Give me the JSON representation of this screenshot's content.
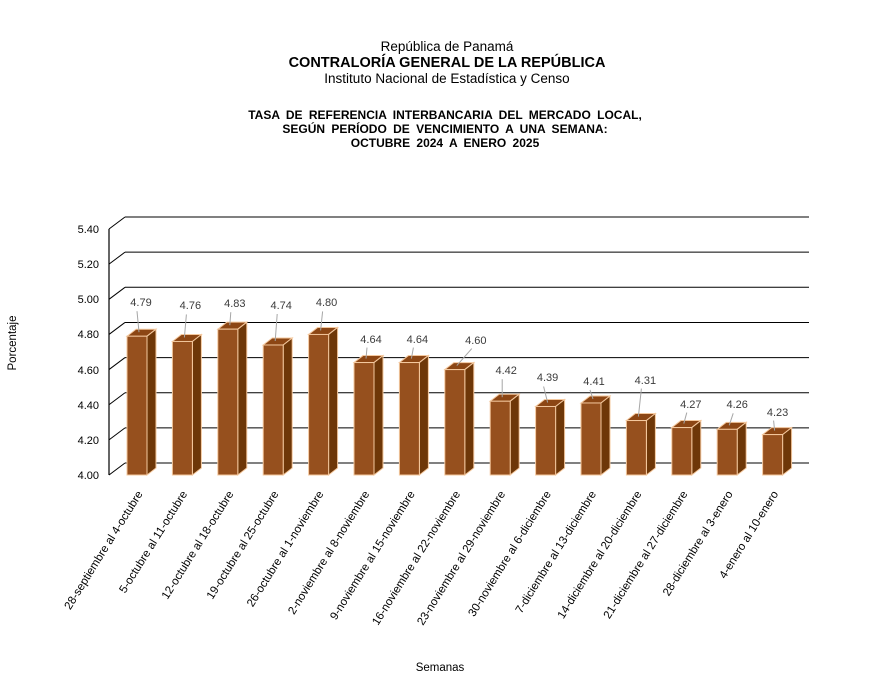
{
  "header": {
    "line1": "República de Panamá",
    "line2": "CONTRALORÍA GENERAL DE LA REPÚBLICA",
    "line3": "Instituto Nacional de Estadística y Censo"
  },
  "title": {
    "line1": "TASA DE REFERENCIA INTERBANCARIA DEL MERCADO LOCAL,",
    "line2": "SEGÚN PERÍODO DE VENCIMIENTO A UNA SEMANA:",
    "line3": "OCTUBRE 2024 A ENERO 2025"
  },
  "chart_data": {
    "type": "bar",
    "style": "3d-column",
    "title": "TASA DE REFERENCIA INTERBANCARIA DEL MERCADO LOCAL, SEGÚN PERÍODO DE VENCIMIENTO A UNA SEMANA: OCTUBRE 2024 A ENERO 2025",
    "xlabel": "Semanas",
    "ylabel": "Porcentaje",
    "ylim": [
      4.0,
      5.4
    ],
    "ytick_step": 0.2,
    "yticks": [
      "4.00",
      "4.20",
      "4.40",
      "4.60",
      "4.80",
      "5.00",
      "5.20",
      "5.40"
    ],
    "grid": true,
    "legend": false,
    "categories": [
      "28-septiembre al 4-octubre",
      "5-octubre al 11-octubre",
      "12-octubre al 18-octubre",
      "19-octubre al 25-octubre",
      "26-octubre al 1-noviembre",
      "2-noviembre al 8-noviembre",
      "9-noviembre al 15-noviembre",
      "16-noviembre al 22-noviembre",
      "23-noviembre al 29-noviembre",
      "30-noviembre al 6-diciembre",
      "7-diciembre al 13-diciembre",
      "14-diciembre al 20-diciembre",
      "21-diciembre al 27-diciembre",
      "28-diciembre al 3-enero",
      "4-enero al 10-enero"
    ],
    "values": [
      4.79,
      4.76,
      4.83,
      4.74,
      4.8,
      4.64,
      4.64,
      4.6,
      4.42,
      4.39,
      4.41,
      4.31,
      4.27,
      4.26,
      4.23
    ],
    "value_labels": [
      "4.79",
      "4.76",
      "4.83",
      "4.74",
      "4.80",
      "4.64",
      "4.64",
      "4.60",
      "4.42",
      "4.39",
      "4.41",
      "4.31",
      "4.27",
      "4.26",
      "4.23"
    ],
    "colors": {
      "bar_front": "#96501E",
      "bar_side": "#6E3708",
      "bar_top": "#8C4614",
      "bar_outline": "#F4C89E",
      "gridline": "#000000",
      "leader_line": "#A6A6A6",
      "value_label_text": "#3B3B3B"
    }
  }
}
